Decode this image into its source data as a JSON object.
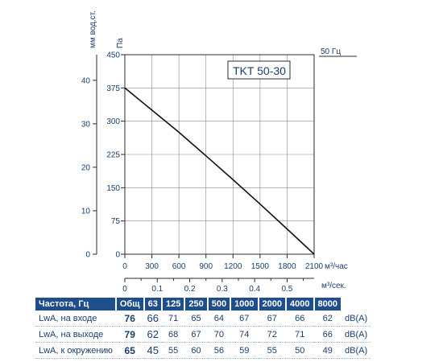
{
  "chart_data": {
    "type": "line",
    "title": "",
    "model_label": "TKT 50-30",
    "frequency_label": "50 Гц",
    "left_axis_label": "мм вод.ст.",
    "pressure_axis_label": "Па",
    "x_axis_label": "м³/час",
    "x2_axis_label": "м³/сек.",
    "xlim": [
      0,
      2100
    ],
    "ylim": [
      0,
      450
    ],
    "x_ticks": [
      "0",
      "300",
      "600",
      "900",
      "1200",
      "1500",
      "1800",
      "2100"
    ],
    "y_ticks": [
      "0",
      "75",
      "150",
      "225",
      "300",
      "375",
      "450"
    ],
    "mm_ticks": [
      "0",
      "10",
      "20",
      "30",
      "40"
    ],
    "x2_ticks": [
      "0",
      "0.1",
      "0.2",
      "0.3",
      "0.4",
      "0.5"
    ],
    "grid": true,
    "series": [
      {
        "x": [
          0,
          300,
          600,
          900,
          1200,
          1500,
          1800,
          2100
        ],
        "y": [
          375,
          325,
          275,
          222,
          168,
          113,
          57,
          0
        ]
      }
    ]
  },
  "table": {
    "headers": [
      "Частота, Гц",
      "Общ",
      "63",
      "125",
      "250",
      "500",
      "1000",
      "2000",
      "4000",
      "8000"
    ],
    "rows": [
      {
        "label": "LwA, на входе",
        "total": "76",
        "values": [
          "66",
          "71",
          "65",
          "64",
          "67",
          "67",
          "66",
          "62"
        ],
        "unit": "dB(A)"
      },
      {
        "label": "LwA, на выходе",
        "total": "79",
        "values": [
          "62",
          "68",
          "67",
          "70",
          "74",
          "72",
          "71",
          "66"
        ],
        "unit": "dB(A)"
      },
      {
        "label": "LwA, к окружению",
        "total": "65",
        "values": [
          "45",
          "55",
          "60",
          "56",
          "59",
          "55",
          "50",
          "49"
        ],
        "unit": "dB(A)"
      }
    ]
  }
}
